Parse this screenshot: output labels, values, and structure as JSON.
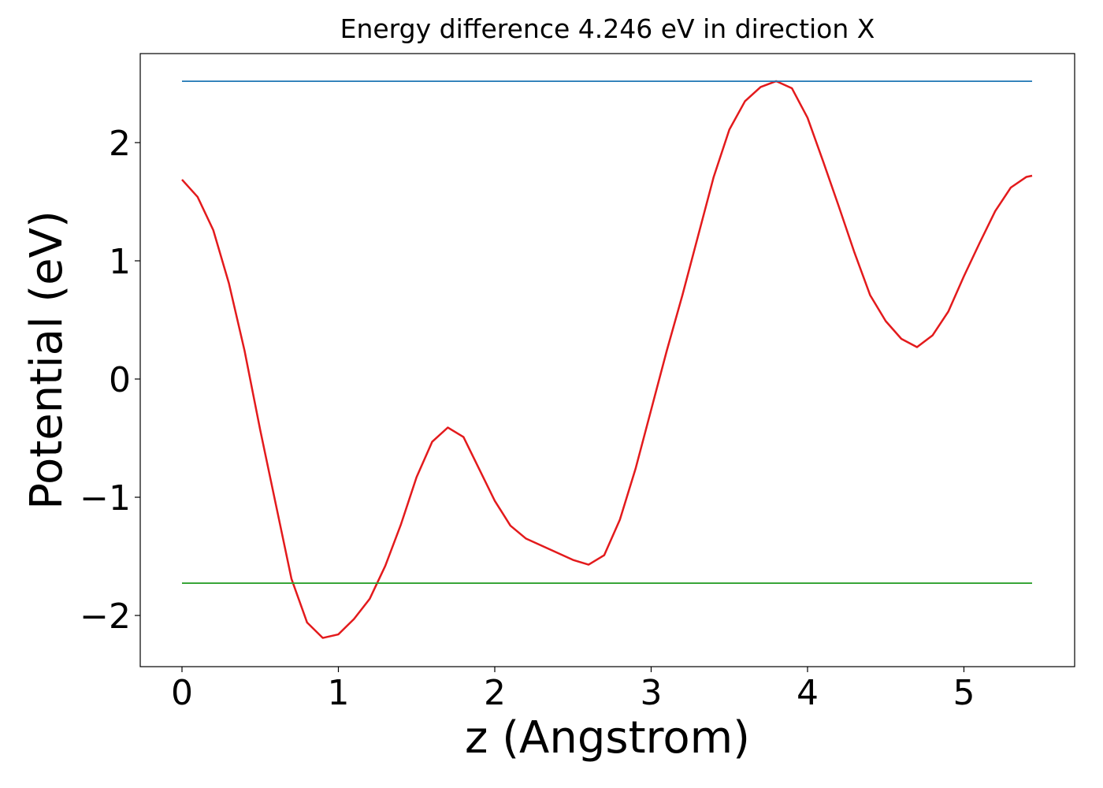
{
  "chart_data": {
    "type": "line",
    "title": "Energy difference 4.246 eV in direction X",
    "x_label": "z (Angstrom)",
    "y_label": "Potential (eV)",
    "xlim": [
      -0.267,
      5.708
    ],
    "ylim": [
      -2.433,
      2.753
    ],
    "xticks": [
      0,
      1,
      2,
      3,
      4,
      5
    ],
    "yticks": [
      {
        "value": -2,
        "label": "−2"
      },
      {
        "value": -1,
        "label": "−1"
      },
      0,
      1,
      2
    ],
    "grid": false,
    "series": [
      {
        "color": "#e31a1c",
        "x": [
          0,
          0.1,
          0.2,
          0.3,
          0.4,
          0.5,
          0.6,
          0.7,
          0.8,
          0.9,
          1.0,
          1.1,
          1.2,
          1.3,
          1.4,
          1.5,
          1.6,
          1.7,
          1.8,
          1.9,
          2.0,
          2.1,
          2.2,
          2.3,
          2.4,
          2.5,
          2.6,
          2.7,
          2.8,
          2.9,
          3.0,
          3.1,
          3.2,
          3.3,
          3.4,
          3.5,
          3.6,
          3.7,
          3.8,
          3.9,
          4.0,
          4.1,
          4.2,
          4.3,
          4.4,
          4.5,
          4.6,
          4.7,
          4.8,
          4.9,
          5.0,
          5.1,
          5.2,
          5.3,
          5.4,
          5.436
        ],
        "values": [
          1.687,
          1.54,
          1.26,
          0.81,
          0.24,
          -0.43,
          -1.06,
          -1.69,
          -2.06,
          -2.19,
          -2.16,
          -2.03,
          -1.86,
          -1.58,
          -1.23,
          -0.83,
          -0.53,
          -0.41,
          -0.49,
          -0.76,
          -1.03,
          -1.24,
          -1.35,
          -1.41,
          -1.47,
          -1.53,
          -1.57,
          -1.49,
          -1.19,
          -0.76,
          -0.26,
          0.24,
          0.71,
          1.21,
          1.71,
          2.11,
          2.35,
          2.47,
          2.52,
          2.46,
          2.21,
          1.84,
          1.46,
          1.07,
          0.71,
          0.49,
          0.34,
          0.27,
          0.37,
          0.57,
          0.87,
          1.15,
          1.42,
          1.62,
          1.71,
          1.72
        ]
      },
      {
        "color": "#1f77b4",
        "x": [
          0,
          5.436
        ],
        "values": [
          2.519,
          2.519
        ]
      },
      {
        "color": "#2ca02c",
        "x": [
          0,
          5.436
        ],
        "values": [
          -1.727,
          -1.727
        ]
      }
    ]
  }
}
